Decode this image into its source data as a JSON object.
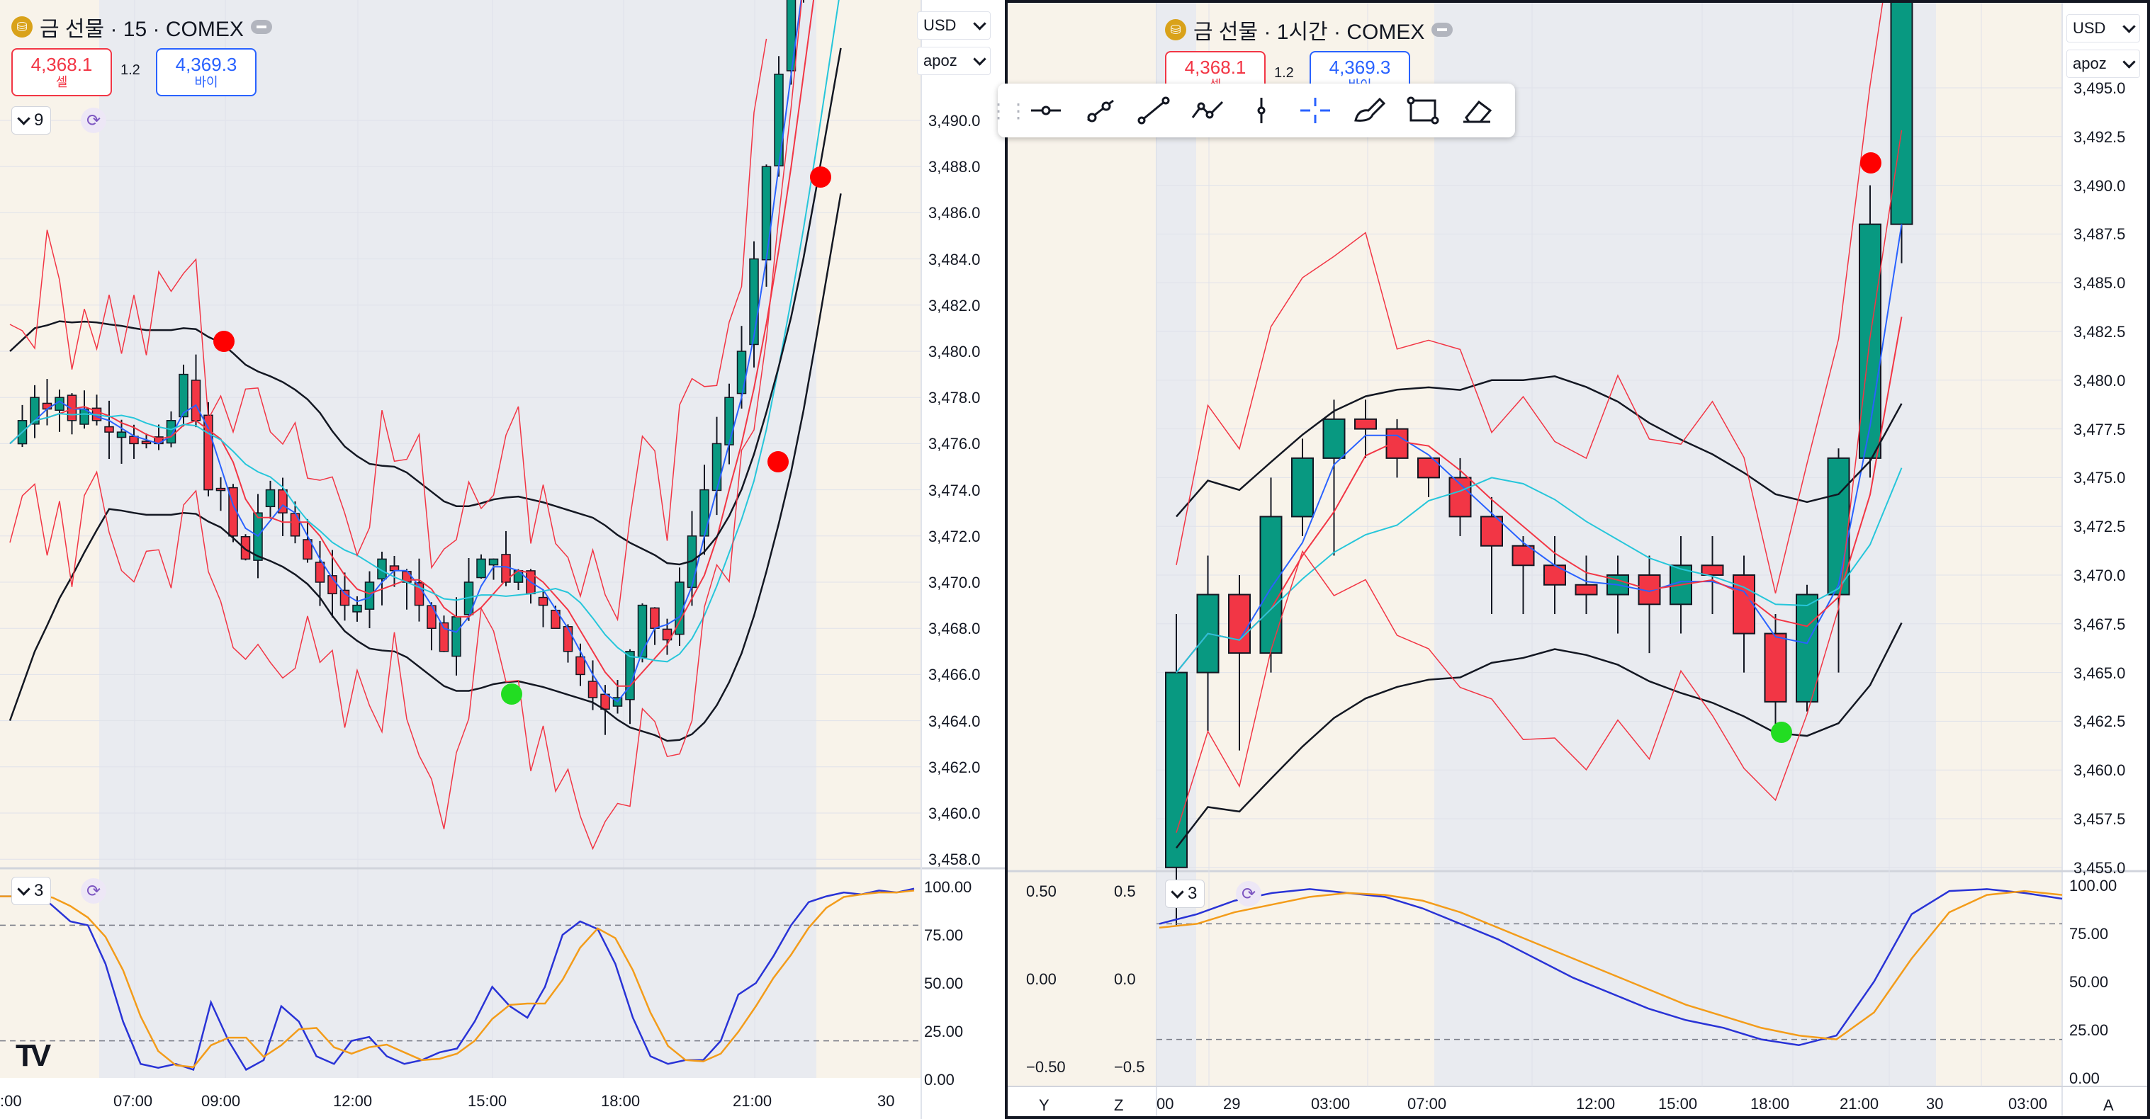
{
  "left_chart": {
    "symbol_title": "금 선물 · 15 · COMEX",
    "sell_price": "4,368.1",
    "sell_label": "셀",
    "spread": "1.2",
    "buy_price": "4,369.3",
    "buy_label": "바이",
    "indicator_count": "9",
    "currency": "USD",
    "scale_mode": "apoz",
    "oscillator_count": "3",
    "price_axis": [
      "3,490.0",
      "3,488.0",
      "3,486.0",
      "3,484.0",
      "3,482.0",
      "3,480.0",
      "3,478.0",
      "3,476.0",
      "3,474.0",
      "3,472.0",
      "3,470.0",
      "3,468.0",
      "3,466.0",
      "3,464.0",
      "3,462.0",
      "3,460.0",
      "3,458.0"
    ],
    "osc_axis": [
      "100.00",
      "75.00",
      "50.00",
      "25.00",
      "0.00"
    ],
    "time_axis": [
      ":00",
      "07:00",
      "09:00",
      "12:00",
      "15:00",
      "18:00",
      "21:00",
      "30"
    ]
  },
  "right_chart": {
    "symbol_title": "금 선물 · 1시간 · COMEX",
    "sell_price": "4,368.1",
    "sell_label": "셀",
    "spread": "1.2",
    "buy_price": "4,369.3",
    "buy_label": "바이",
    "currency": "USD",
    "scale_mode": "apoz",
    "oscillator_count": "3",
    "price_axis": [
      "3,495.0",
      "3,492.5",
      "3,490.0",
      "3,487.5",
      "3,485.0",
      "3,482.5",
      "3,480.0",
      "3,477.5",
      "3,475.0",
      "3,472.5",
      "3,470.0",
      "3,467.5",
      "3,465.0",
      "3,462.5",
      "3,460.0",
      "3,457.5",
      "3,455.0"
    ],
    "osc_axis": [
      "100.00",
      "75.00",
      "50.00",
      "25.00",
      "0.00"
    ],
    "left_axis": [
      "0.50",
      "0.00",
      "−0.50"
    ],
    "left_axis2": [
      "0.5",
      "0.0",
      "−0.5"
    ],
    "time_axis": [
      "00",
      "29",
      "03:00",
      "07:00",
      "12:00",
      "15:00",
      "18:00",
      "21:00",
      "30",
      "03:00"
    ],
    "bottom_letters": [
      "Y",
      "Z",
      "A"
    ]
  },
  "toolbar": {
    "tools": [
      "horizontal-line",
      "ray",
      "trend-line",
      "path",
      "vertical-line",
      "crosshair",
      "brush",
      "rectangle",
      "eraser"
    ]
  },
  "colors": {
    "up": "#089981",
    "down": "#f23645",
    "session_shade": "#f8f3ea",
    "main_shade": "#e9ebf0"
  }
}
